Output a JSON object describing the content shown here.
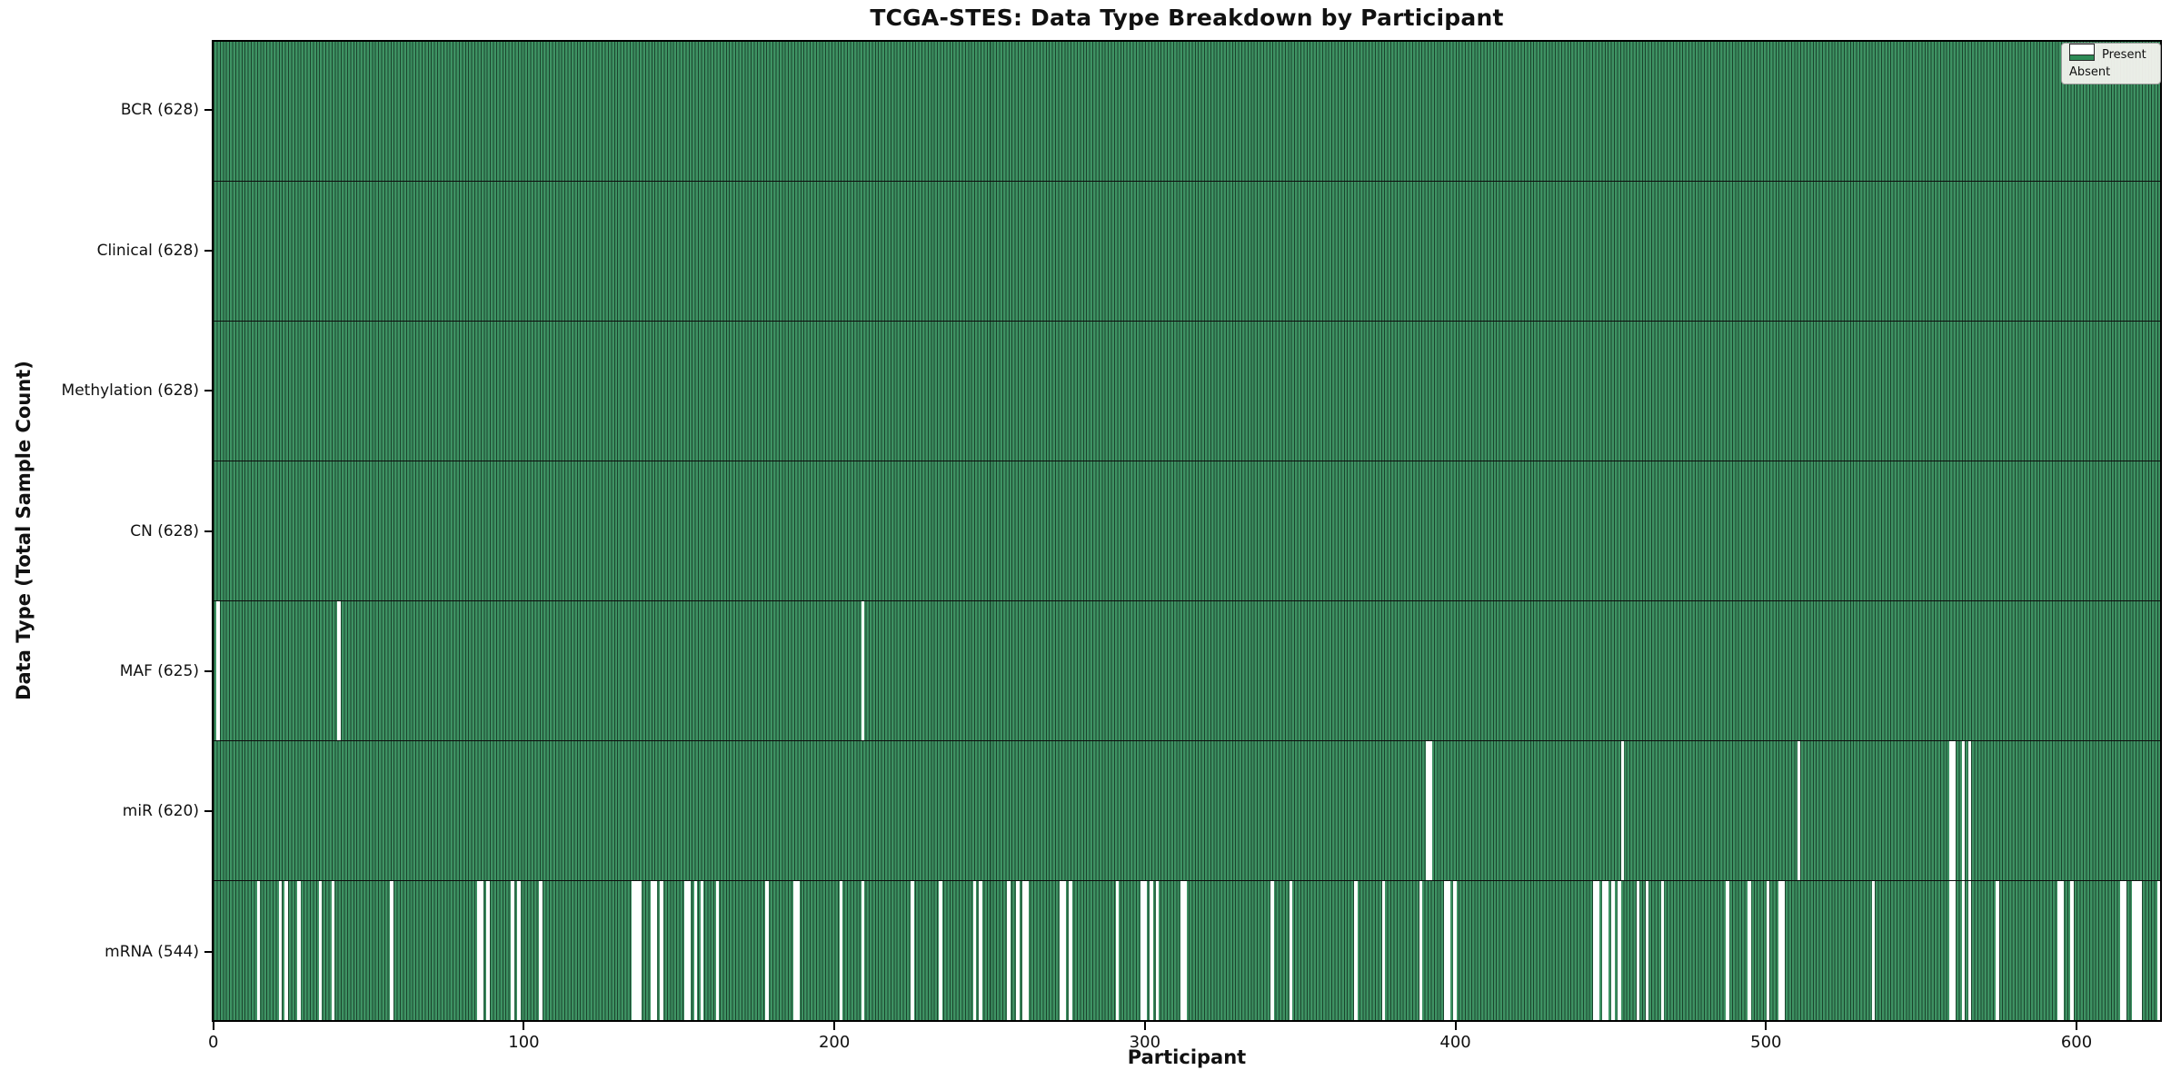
{
  "title": "TCGA-STES: Data Type Breakdown by Participant",
  "xlabel": "Participant",
  "ylabel": "Data Type (Total Sample Count)",
  "legend": {
    "present_label": "Present",
    "absent_label": "Absent"
  },
  "colors": {
    "present_fill": "#2e8b57",
    "present_fill_rendered": "#3e9263",
    "bar_edge": "#1b442d",
    "absent_fill": "#ffffff",
    "legend_background": "#f3f3ee",
    "text": "#111111",
    "background": "#ffffff"
  },
  "x_ticks": [
    0,
    100,
    200,
    300,
    400,
    500,
    600
  ],
  "chart_data": {
    "type": "heatmap",
    "title": "TCGA-STES: Data Type Breakdown by Participant",
    "xlabel": "Participant",
    "ylabel": "Data Type (Total Sample Count)",
    "legend": [
      "Present",
      "Absent"
    ],
    "legend_position": "upper right",
    "grid": false,
    "n_participants": 628,
    "x_range": [
      0,
      628
    ],
    "x_tick_values": [
      0,
      100,
      200,
      300,
      400,
      500,
      600
    ],
    "rows": [
      {
        "name": "BCR",
        "label": "BCR (628)",
        "present_count": 628,
        "absent_count": 0,
        "absent_participants": []
      },
      {
        "name": "Clinical",
        "label": "Clinical (628)",
        "present_count": 628,
        "absent_count": 0,
        "absent_participants": []
      },
      {
        "name": "Methylation",
        "label": "Methylation (628)",
        "present_count": 628,
        "absent_count": 0,
        "absent_participants": []
      },
      {
        "name": "CN",
        "label": "CN (628)",
        "present_count": 628,
        "absent_count": 0,
        "absent_participants": []
      },
      {
        "name": "MAF",
        "label": "MAF (625)",
        "present_count": 625,
        "absent_count": 3,
        "absent_participants": [
          1,
          40,
          209
        ]
      },
      {
        "name": "miR",
        "label": "miR (620)",
        "present_count": 620,
        "absent_count": 8,
        "absent_participants": [
          391,
          392,
          454,
          511,
          560,
          561,
          564,
          566
        ]
      },
      {
        "name": "mRNA",
        "label": "mRNA (544)",
        "present_count": 544,
        "absent_count": 84,
        "absent_participants": [
          14,
          21,
          23,
          27,
          34,
          38,
          57,
          85,
          86,
          88,
          96,
          98,
          105,
          135,
          136,
          137,
          141,
          142,
          144,
          152,
          153,
          155,
          157,
          162,
          178,
          187,
          188,
          202,
          209,
          225,
          234,
          245,
          247,
          256,
          259,
          261,
          262,
          273,
          274,
          276,
          291,
          299,
          300,
          302,
          304,
          312,
          313,
          341,
          347,
          368,
          377,
          389,
          397,
          398,
          400,
          445,
          446,
          448,
          449,
          451,
          453,
          459,
          462,
          467,
          488,
          495,
          501,
          505,
          506,
          535,
          560,
          561,
          564,
          566,
          575,
          595,
          596,
          599,
          615,
          616,
          619,
          620,
          621,
          627
        ]
      }
    ]
  }
}
